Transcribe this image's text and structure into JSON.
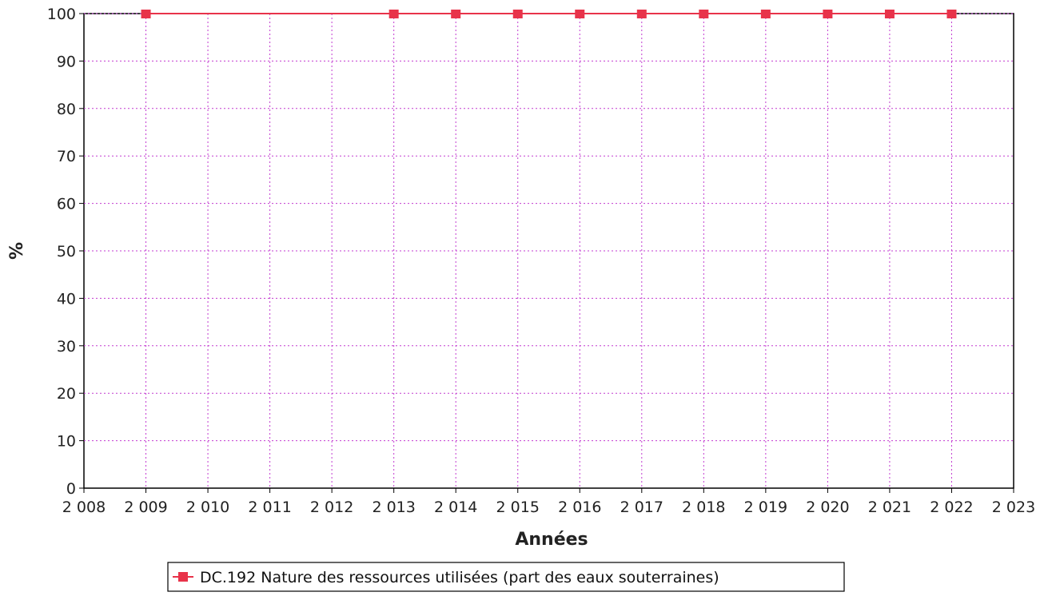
{
  "chart_data": {
    "type": "line",
    "xlabel": "Années",
    "ylabel": "%",
    "x_ticks": [
      "2 008",
      "2 009",
      "2 010",
      "2 011",
      "2 012",
      "2 013",
      "2 014",
      "2 015",
      "2 016",
      "2 017",
      "2 018",
      "2 019",
      "2 020",
      "2 021",
      "2 022",
      "2 023"
    ],
    "xlim": [
      2008,
      2023
    ],
    "ylim": [
      0,
      100
    ],
    "y_ticks": [
      0,
      10,
      20,
      30,
      40,
      50,
      60,
      70,
      80,
      90,
      100
    ],
    "grid": true,
    "legend_position": "bottom-center",
    "series": [
      {
        "name": "DC.192 Nature des ressources utilisées (part des eaux souterraines)",
        "color": "#e8334a",
        "marker": "square",
        "x": [
          2009,
          2013,
          2014,
          2015,
          2016,
          2017,
          2018,
          2019,
          2020,
          2021,
          2022
        ],
        "y": [
          100,
          100,
          100,
          100,
          100,
          100,
          100,
          100,
          100,
          100,
          100
        ]
      }
    ]
  }
}
